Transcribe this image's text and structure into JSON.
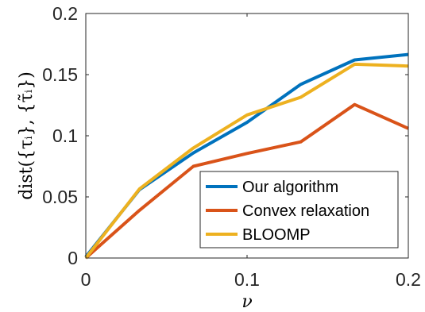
{
  "chart_data": {
    "type": "line",
    "xlabel": "ν",
    "ylabel": "dist({τᵢ}, {τ̃ᵢ})",
    "xlim": [
      0,
      0.2
    ],
    "ylim": [
      0,
      0.2
    ],
    "xticks": [
      "0",
      "0.1",
      "0.2"
    ],
    "yticks": [
      "0",
      "0.05",
      "0.1",
      "0.15",
      "0.2"
    ],
    "grid": false,
    "legend_position": "bottom-right",
    "series": [
      {
        "name": "Our algorithm",
        "color": "#0072BD",
        "x": [
          0,
          0.0333,
          0.0667,
          0.1,
          0.1333,
          0.1667,
          0.2
        ],
        "y": [
          0.001,
          0.056,
          0.086,
          0.111,
          0.142,
          0.162,
          0.1665
        ]
      },
      {
        "name": "Convex relaxation",
        "color": "#D95319",
        "x": [
          0,
          0.0333,
          0.0667,
          0.1,
          0.1333,
          0.1667,
          0.2
        ],
        "y": [
          0.0,
          0.039,
          0.075,
          0.0855,
          0.095,
          0.1255,
          0.106
        ]
      },
      {
        "name": "BLOOMP",
        "color": "#EDB120",
        "x": [
          0,
          0.0333,
          0.0667,
          0.1,
          0.1333,
          0.1667,
          0.2
        ],
        "y": [
          0.0,
          0.0565,
          0.09,
          0.117,
          0.1315,
          0.1585,
          0.157
        ]
      }
    ]
  }
}
